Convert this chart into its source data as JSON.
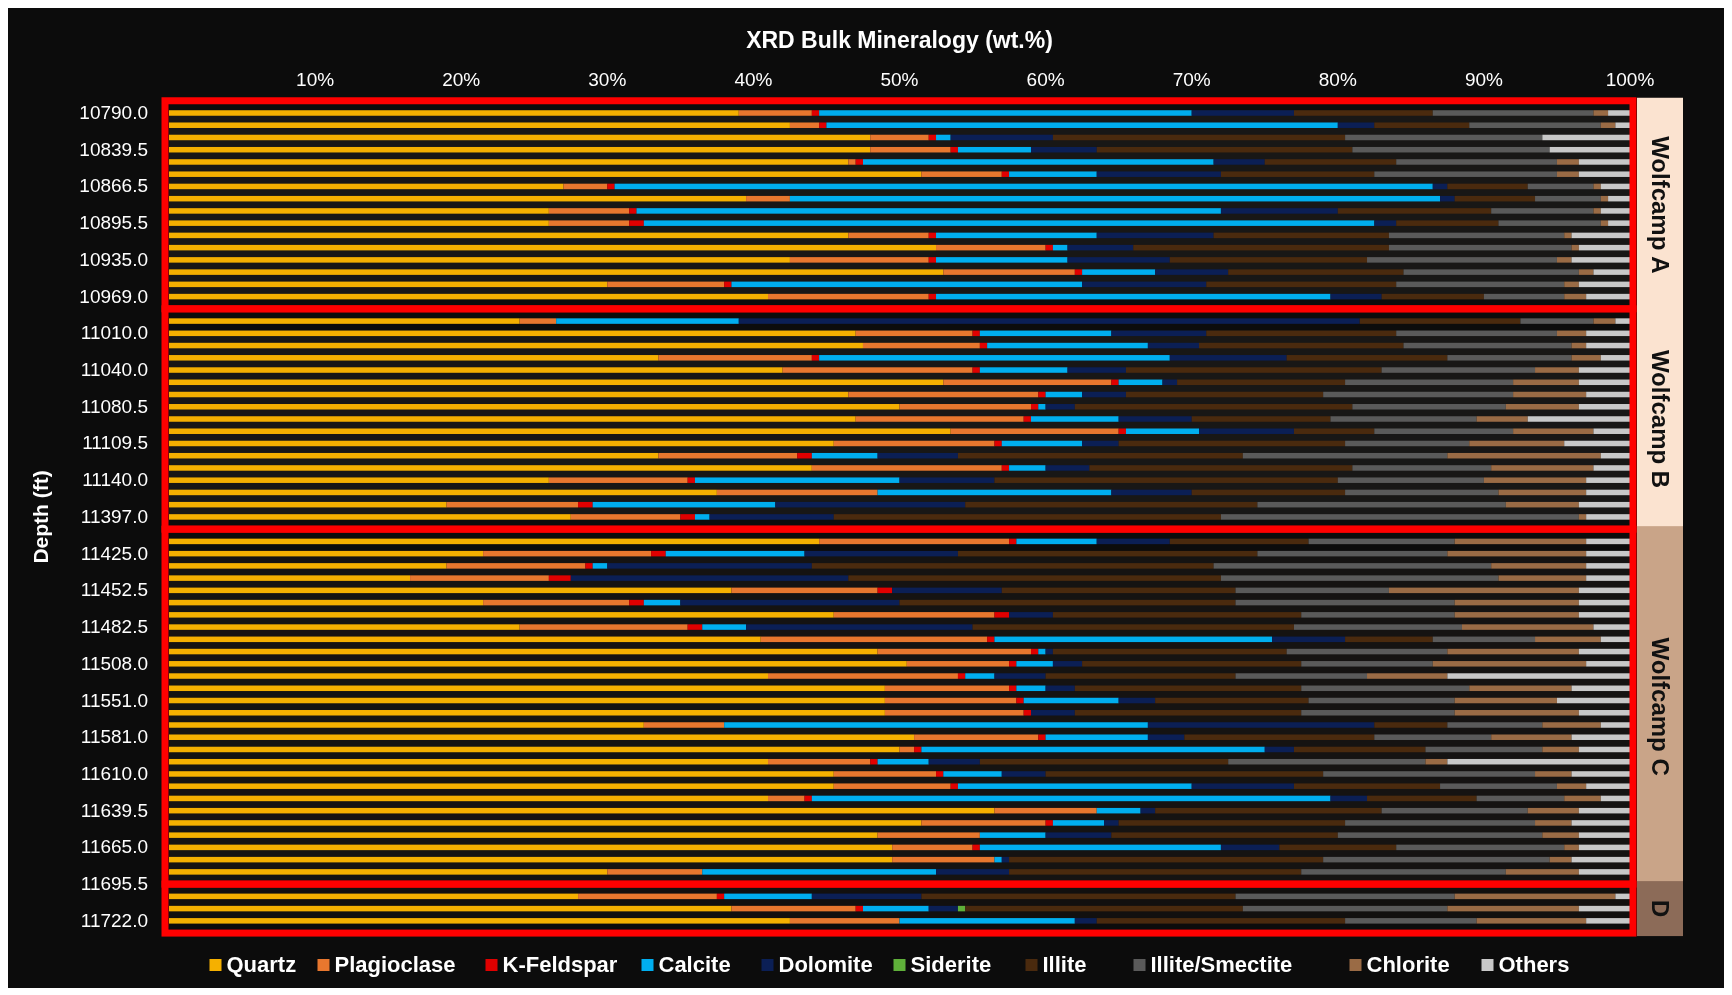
{
  "chart_data": {
    "type": "bar",
    "orientation": "horizontal",
    "stacked": true,
    "xlabel": "XRD Bulk Mineralogy (wt.%)",
    "ylabel": "Depth (ft)",
    "categories": [
      "10790.0",
      null,
      null,
      "10839.5",
      null,
      null,
      "10866.5",
      null,
      null,
      "10895.5",
      null,
      null,
      "10935.0",
      null,
      null,
      "10969.0",
      null,
      null,
      "11010.0",
      null,
      null,
      "11040.0",
      null,
      null,
      "11080.5",
      null,
      null,
      "11109.5",
      null,
      null,
      "11140.0",
      null,
      null,
      "11397.0",
      null,
      null,
      "11425.0",
      null,
      null,
      "11452.5",
      null,
      null,
      "11482.5",
      null,
      null,
      "11508.0",
      null,
      null,
      "11551.0",
      null,
      null,
      "11581.0",
      null,
      null,
      "11610.0",
      null,
      null,
      "11639.5",
      null,
      null,
      "11665.0",
      null,
      null,
      "11695.5",
      null,
      null,
      "11722.0"
    ],
    "xlim": [
      0,
      100
    ],
    "xticks": [
      {
        "value": 10,
        "label": "10%"
      },
      {
        "value": 20,
        "label": "20%"
      },
      {
        "value": 30,
        "label": "30%"
      },
      {
        "value": 40,
        "label": "40%"
      },
      {
        "value": 50,
        "label": "50%"
      },
      {
        "value": 60,
        "label": "60%"
      },
      {
        "value": 70,
        "label": "70%"
      },
      {
        "value": 80,
        "label": "80%"
      },
      {
        "value": 90,
        "label": "90%"
      },
      {
        "value": 100,
        "label": "100%"
      }
    ],
    "grid": false,
    "legend": "bottom",
    "series": [
      {
        "name": "Quartz",
        "color": "#f5b000",
        "values": [
          39,
          42.5,
          48,
          48,
          46.5,
          51.5,
          27,
          39.5,
          26,
          26,
          46.5,
          52.5,
          42.5,
          53,
          30,
          41,
          null,
          24,
          47,
          47.5,
          33.5,
          42,
          53,
          46.5,
          50,
          47,
          53.5,
          45.5,
          33.5,
          44,
          26,
          37.5,
          19,
          27.5,
          null,
          44.5,
          21.5,
          19,
          16.5,
          38.5,
          21.5,
          45.5,
          24,
          40.5,
          48.5,
          50.5,
          41,
          49,
          49,
          49,
          32.5,
          51,
          50,
          41,
          45.5,
          45.5,
          41,
          56.5,
          51.5,
          48.5,
          49.5,
          49.5,
          30,
          null,
          28,
          38.5,
          42.5
        ]
      },
      {
        "name": "Plagioclase",
        "color": "#e8772e",
        "values": [
          5,
          2,
          4,
          5.5,
          0.5,
          5.5,
          3,
          3,
          5.5,
          5.5,
          5.5,
          7.5,
          9.5,
          9,
          8,
          11,
          null,
          2.5,
          8,
          8,
          10.5,
          13,
          11.5,
          13,
          9,
          11.5,
          11.5,
          11,
          9.5,
          13,
          9.5,
          11,
          9,
          7.5,
          null,
          13,
          11.5,
          9.5,
          9.5,
          10,
          10,
          11,
          11.5,
          15.5,
          10.5,
          7,
          13,
          8.5,
          9,
          9.5,
          5.5,
          8.5,
          1,
          7,
          7,
          8,
          2.5,
          7,
          8.5,
          7,
          5.5,
          7,
          6.5,
          null,
          9.5,
          8.5,
          7.5
        ]
      },
      {
        "name": "K-Feldspar",
        "color": "#e00000",
        "values": [
          0.5,
          0.5,
          0.5,
          0.5,
          0.5,
          0.5,
          0.5,
          0,
          0.5,
          1,
          0.5,
          0.5,
          0.5,
          0.5,
          0.5,
          0.5,
          null,
          0,
          0.5,
          0.5,
          0.5,
          0.5,
          0.5,
          0.5,
          0.5,
          0.5,
          0.5,
          0.5,
          1,
          0.5,
          0.5,
          0,
          1,
          1,
          null,
          0.5,
          1,
          0.5,
          1.5,
          1,
          1,
          1,
          1,
          0.5,
          0.5,
          0.5,
          0.5,
          0.5,
          0.5,
          0.5,
          0,
          0.5,
          0.5,
          0.5,
          0.5,
          0.5,
          0.5,
          0,
          0.5,
          0,
          0.5,
          0,
          0,
          null,
          0.5,
          0.5,
          0
        ]
      },
      {
        "name": "Calcite",
        "color": "#00aeef",
        "values": [
          25.5,
          35,
          1,
          5,
          24,
          6,
          56,
          44.5,
          40,
          50,
          11,
          1,
          9,
          5,
          24,
          27,
          null,
          12.5,
          9,
          11,
          24,
          6,
          3,
          2.5,
          0.5,
          6,
          5,
          5.5,
          4.5,
          2.5,
          14,
          16,
          12.5,
          1,
          null,
          5.5,
          9.5,
          1,
          0,
          0,
          2.5,
          0,
          3,
          19,
          0.5,
          2.5,
          2,
          2,
          6.5,
          0,
          29,
          7,
          23.5,
          3.5,
          4,
          16,
          35.5,
          3,
          3.5,
          4.5,
          16.5,
          0.5,
          16,
          null,
          6,
          4.5,
          12
        ]
      },
      {
        "name": "Dolomite",
        "color": "#0b1f55",
        "values": [
          7,
          2.5,
          7,
          4.5,
          3.5,
          8.5,
          1,
          1,
          8,
          1.5,
          8,
          4.5,
          7,
          5,
          8.5,
          3.5,
          null,
          42.5,
          6.5,
          3.5,
          8,
          4,
          1,
          3,
          2,
          5,
          6.5,
          2.5,
          5.5,
          3,
          6.5,
          5.5,
          13,
          8.5,
          null,
          5,
          10.5,
          14,
          19,
          7.5,
          15,
          3,
          15.5,
          5,
          0.5,
          2,
          3.5,
          2,
          2.5,
          3,
          15.5,
          2.5,
          2,
          3.5,
          3,
          7,
          2.5,
          1,
          1,
          4.5,
          4,
          0.5,
          5,
          null,
          7.5,
          2,
          1.5
        ]
      },
      {
        "name": "Siderite",
        "color": "#5fb03a",
        "values": [
          0,
          0,
          0,
          0,
          0,
          0,
          0,
          0,
          0,
          0,
          0,
          0,
          0,
          0,
          0,
          0,
          null,
          0,
          0,
          0,
          0,
          0,
          0,
          0,
          0,
          0,
          0,
          0,
          0,
          0,
          0,
          0,
          0,
          0,
          null,
          0,
          0,
          0,
          0,
          0,
          0,
          0,
          0,
          0,
          0,
          0,
          0,
          0,
          0,
          0,
          0,
          0,
          0,
          0,
          0,
          0,
          0,
          0,
          0,
          0,
          0,
          0,
          0,
          null,
          0,
          0.5,
          0
        ]
      },
      {
        "name": "Illite",
        "color": "#4a2a0e",
        "values": [
          9.5,
          6.5,
          20,
          17.5,
          9,
          10.5,
          5.5,
          5.5,
          10.5,
          7,
          12,
          17.5,
          13.5,
          12,
          13,
          7,
          null,
          11,
          13,
          14,
          11,
          17.5,
          11.5,
          13.5,
          19,
          9.5,
          5.5,
          15.5,
          19.5,
          18,
          23.5,
          10.5,
          20,
          26.5,
          null,
          9.5,
          20.5,
          27.5,
          25.5,
          16,
          23,
          17,
          22,
          6,
          16,
          15,
          13,
          15.5,
          10.5,
          15.5,
          5,
          13,
          9,
          17,
          19,
          10,
          7.5,
          15.5,
          15.5,
          15.5,
          8,
          21.5,
          20,
          null,
          21.5,
          19,
          17
        ]
      },
      {
        "name": "Illite/Smectite",
        "color": "#5a5a5a",
        "values": [
          11,
          9,
          13.5,
          13.5,
          11,
          12.5,
          4.5,
          4.5,
          7,
          7,
          12,
          12.5,
          13,
          12,
          11.5,
          5.5,
          null,
          5,
          11,
          11.5,
          8.5,
          10.5,
          11.5,
          13,
          10.5,
          10,
          9.5,
          8.5,
          14,
          9.5,
          10,
          10.5,
          17,
          24.5,
          null,
          10,
          13,
          19,
          19,
          10.5,
          15,
          10.5,
          11.5,
          7,
          11,
          9,
          9,
          11.5,
          10,
          10.5,
          6.5,
          8,
          8,
          13.5,
          14.5,
          8,
          6,
          10,
          13,
          14,
          11.5,
          15.5,
          14,
          null,
          15,
          14,
          9
        ]
      },
      {
        "name": "Chlorite",
        "color": "#9a6b45",
        "values": [
          1,
          1,
          0,
          0,
          1.5,
          1.5,
          0.5,
          0.5,
          0.5,
          0.5,
          0.5,
          0.5,
          1,
          1,
          1,
          1.5,
          null,
          1.5,
          2,
          1,
          2,
          3,
          4.5,
          5,
          5,
          3.5,
          5.5,
          6.5,
          10.5,
          7,
          7,
          6,
          5,
          0.5,
          null,
          9,
          9.5,
          6.5,
          6,
          13,
          8.5,
          8.5,
          9,
          4.5,
          9,
          10.5,
          5.5,
          7,
          7,
          8.5,
          4,
          5.5,
          2.5,
          1.5,
          2.5,
          2,
          2.5,
          3.5,
          2.5,
          2.5,
          1,
          1.5,
          5,
          null,
          11,
          9,
          7.5
        ]
      },
      {
        "name": "Others",
        "color": "#c8c8c8",
        "values": [
          1.5,
          1,
          6,
          5.5,
          3.5,
          3.5,
          2,
          1.5,
          2,
          1.5,
          4,
          3.5,
          4,
          2.5,
          3.5,
          3,
          null,
          1,
          3,
          3,
          2,
          3.5,
          3.5,
          3,
          3.5,
          7,
          2.5,
          4.5,
          2,
          2.5,
          3,
          3,
          3.5,
          3,
          null,
          3,
          3,
          3,
          3,
          3.5,
          3.5,
          3.5,
          2.5,
          2,
          3.5,
          3,
          12.5,
          4,
          5,
          3.5,
          2,
          4,
          3.5,
          12.5,
          4,
          3,
          2,
          3.5,
          4,
          3.5,
          3.5,
          4,
          3.5,
          null,
          1,
          3.5,
          3
        ]
      }
    ],
    "bands": [
      {
        "axis": "y",
        "from": "10790.0",
        "to": "10969.0",
        "label": "Wolfcamp A",
        "color": "#fbe3d0"
      },
      {
        "axis": "y",
        "from": "11010.0",
        "to": "11397.0",
        "label": "Wolfcamp B",
        "color": "#fbe3d0"
      },
      {
        "axis": "y",
        "from": "11425.0",
        "to": "11695.5",
        "label": "Wolfcamp C",
        "color": "#c9a488"
      },
      {
        "axis": "y",
        "from": "11695.5",
        "to": "11722.0",
        "label": "D",
        "color": "#8c6b58"
      }
    ]
  }
}
